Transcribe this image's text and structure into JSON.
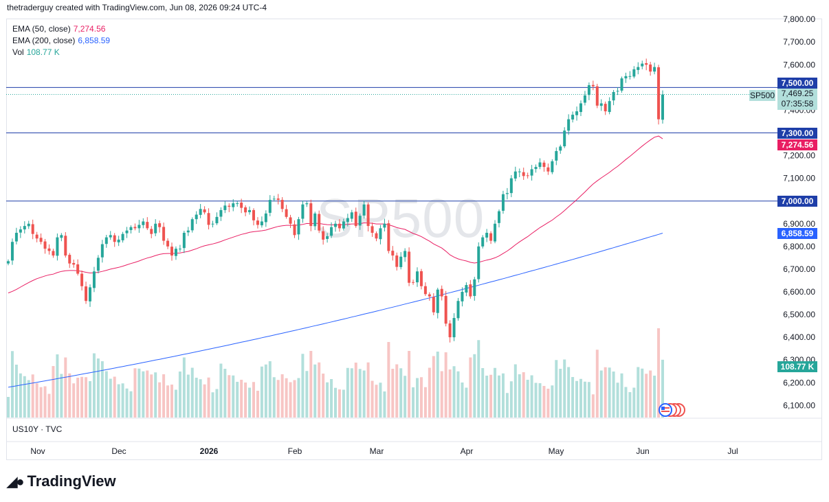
{
  "header": {
    "text": "thetraderguy created with TradingView.com, Jun 08, 2026 09:24 UTC-4"
  },
  "legend": {
    "ema50": {
      "label": "EMA (50, close)",
      "value": "7,274.56",
      "color": "#e91e63"
    },
    "ema200": {
      "label": "EMA (200, close)",
      "value": "6,858.59",
      "color": "#2962ff"
    },
    "vol": {
      "label": "Vol",
      "value": "108.77 K",
      "color": "#26a69a"
    }
  },
  "watermark": "SP500",
  "symbol": {
    "name": "SP500",
    "price": "7,469.25",
    "countdown": "07:35:58"
  },
  "tags": {
    "level_7500": "7,500.00",
    "level_7300": "7,300.00",
    "ema50": "7,274.56",
    "level_7000": "7,000.00",
    "ema200": "6,858.59",
    "vol": "108.77 K"
  },
  "pane_label": "US10Y · TVC",
  "footer": {
    "brand": "TradingView"
  },
  "colors": {
    "up": "#26a69a",
    "down": "#ef5350",
    "hline": "#1e3ea8",
    "up_vol": "#b2dfdb",
    "down_vol": "#f7c5c4"
  },
  "chart_data": {
    "type": "candlestick",
    "symbol": "SP500",
    "y_ticks": [
      "7,800.00",
      "7,700.00",
      "7,600.00",
      "7,500.00",
      "7,400.00",
      "7,300.00",
      "7,200.00",
      "7,100.00",
      "7,000.00",
      "6,900.00",
      "6,800.00",
      "6,700.00",
      "6,600.00",
      "6,500.00",
      "6,400.00",
      "6,300.00",
      "6,200.00",
      "6,100.00"
    ],
    "y_range": [
      6060,
      7820
    ],
    "x_ticks": [
      "Nov",
      "Dec",
      "2026",
      "Feb",
      "Mar",
      "Apr",
      "May",
      "Jun",
      "Jul"
    ],
    "horizontal_levels": [
      7500,
      7300,
      7000
    ],
    "closes": [
      6735,
      6820,
      6860,
      6875,
      6890,
      6900,
      6855,
      6835,
      6820,
      6790,
      6780,
      6760,
      6840,
      6850,
      6760,
      6725,
      6720,
      6680,
      6625,
      6560,
      6620,
      6690,
      6750,
      6810,
      6840,
      6850,
      6820,
      6830,
      6855,
      6870,
      6885,
      6880,
      6895,
      6910,
      6880,
      6855,
      6900,
      6885,
      6825,
      6800,
      6760,
      6790,
      6790,
      6860,
      6870,
      6920,
      6940,
      6965,
      6950,
      6895,
      6900,
      6930,
      6960,
      6980,
      6975,
      6990,
      6990,
      6970,
      6950,
      6960,
      6915,
      6895,
      6910,
      6945,
      7005,
      7010,
      7005,
      6965,
      6930,
      6900,
      6850,
      6920,
      6985,
      6990,
      6890,
      6945,
      6870,
      6830,
      6845,
      6885,
      6900,
      6880,
      6910,
      6925,
      6950,
      6890,
      6935,
      6985,
      6890,
      6860,
      6835,
      6880,
      6900,
      6780,
      6760,
      6710,
      6755,
      6780,
      6640,
      6640,
      6690,
      6625,
      6590,
      6580,
      6510,
      6610,
      6580,
      6460,
      6400,
      6485,
      6560,
      6600,
      6630,
      6580,
      6655,
      6800,
      6840,
      6860,
      6825,
      6900,
      6955,
      7030,
      7035,
      7100,
      7130,
      7130,
      7110,
      7110,
      7140,
      7150,
      7170,
      7150,
      7130,
      7175,
      7220,
      7240,
      7310,
      7360,
      7380,
      7395,
      7430,
      7465,
      7510,
      7505,
      7420,
      7430,
      7395,
      7440,
      7480,
      7485,
      7540,
      7550,
      7550,
      7580,
      7590,
      7605,
      7600,
      7570,
      7590,
      7360,
      7469
    ],
    "ema50": [
      6595,
      6602,
      6611,
      6621,
      6631,
      6641,
      6650,
      6658,
      6664,
      6670,
      6675,
      6678,
      6685,
      6690,
      6693,
      6694,
      6694,
      6693,
      6690,
      6686,
      6683,
      6684,
      6686,
      6690,
      6695,
      6700,
      6704,
      6708,
      6713,
      6719,
      6725,
      6730,
      6736,
      6743,
      6749,
      6754,
      6760,
      6765,
      6768,
      6769,
      6769,
      6770,
      6771,
      6775,
      6778,
      6784,
      6790,
      6797,
      6803,
      6807,
      6811,
      6816,
      6822,
      6829,
      6835,
      6841,
      6847,
      6853,
      6857,
      6862,
      6865,
      6867,
      6869,
      6872,
      6878,
      6883,
      6888,
      6891,
      6893,
      6893,
      6893,
      6894,
      6897,
      6901,
      6900,
      6902,
      6901,
      6898,
      6896,
      6895,
      6895,
      6895,
      6896,
      6897,
      6899,
      6899,
      6900,
      6904,
      6903,
      6902,
      6899,
      6899,
      6899,
      6895,
      6890,
      6883,
      6879,
      6875,
      6866,
      6857,
      6851,
      6843,
      6833,
      6823,
      6811,
      6802,
      6793,
      6779,
      6763,
      6753,
      6745,
      6740,
      6736,
      6730,
      6727,
      6730,
      6735,
      6740,
      6744,
      6750,
      6758,
      6769,
      6780,
      6793,
      6807,
      6820,
      6832,
      6843,
      6857,
      6870,
      6883,
      6894,
      6905,
      6916,
      6930,
      6943,
      6958,
      6974,
      6990,
      7006,
      7023,
      7040,
      7058,
      7075,
      7089,
      7102,
      7114,
      7126,
      7140,
      7153,
      7168,
      7183,
      7197,
      7212,
      7227,
      7242,
      7256,
      7269,
      7281,
      7286,
      7274
    ],
    "ema200_start": 6180,
    "ema200_end": 6858.59,
    "volume_last": "108.77 K"
  }
}
